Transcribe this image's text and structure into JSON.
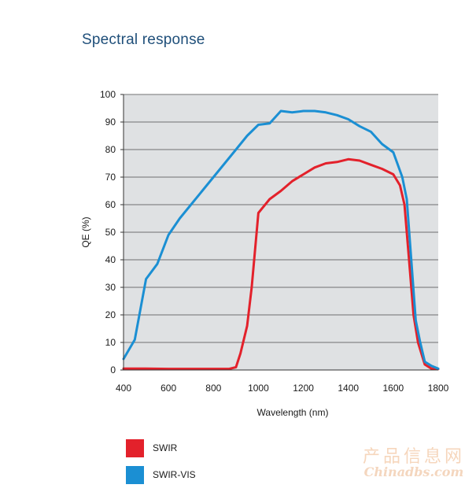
{
  "page": {
    "title": "Spectral response"
  },
  "chart_data": {
    "type": "line",
    "title": "Spectral response",
    "xlabel": "Wavelength (nm)",
    "ylabel": "QE (%)",
    "xlim": [
      400,
      1800
    ],
    "ylim": [
      0,
      100
    ],
    "x_ticks": [
      400,
      600,
      800,
      1000,
      1200,
      1400,
      1600,
      1800
    ],
    "y_ticks": [
      0,
      10,
      20,
      30,
      40,
      50,
      60,
      70,
      80,
      90,
      100
    ],
    "grid": "horizontal",
    "plot_background": "#dfe1e3",
    "legend_position": "bottom-left",
    "series": [
      {
        "name": "SWIR",
        "color": "#e3212b",
        "points": [
          [
            400,
            0.5
          ],
          [
            500,
            0.5
          ],
          [
            600,
            0.4
          ],
          [
            700,
            0.4
          ],
          [
            800,
            0.4
          ],
          [
            870,
            0.4
          ],
          [
            900,
            1
          ],
          [
            920,
            6
          ],
          [
            950,
            16
          ],
          [
            970,
            30
          ],
          [
            1000,
            57
          ],
          [
            1050,
            62
          ],
          [
            1100,
            65
          ],
          [
            1150,
            68.5
          ],
          [
            1200,
            71
          ],
          [
            1250,
            73.5
          ],
          [
            1300,
            75
          ],
          [
            1350,
            75.5
          ],
          [
            1400,
            76.5
          ],
          [
            1450,
            76
          ],
          [
            1500,
            74.5
          ],
          [
            1550,
            73
          ],
          [
            1600,
            71
          ],
          [
            1630,
            67
          ],
          [
            1650,
            60
          ],
          [
            1670,
            40
          ],
          [
            1690,
            20
          ],
          [
            1710,
            10
          ],
          [
            1740,
            2
          ],
          [
            1770,
            0.5
          ],
          [
            1800,
            0.3
          ]
        ]
      },
      {
        "name": "SWIR-VIS",
        "color": "#1b8fd3",
        "points": [
          [
            400,
            4
          ],
          [
            450,
            11
          ],
          [
            500,
            33
          ],
          [
            550,
            38.5
          ],
          [
            600,
            49
          ],
          [
            650,
            55
          ],
          [
            700,
            60
          ],
          [
            750,
            65
          ],
          [
            800,
            70
          ],
          [
            850,
            75
          ],
          [
            900,
            80
          ],
          [
            950,
            85
          ],
          [
            1000,
            89
          ],
          [
            1050,
            89.5
          ],
          [
            1100,
            94
          ],
          [
            1150,
            93.5
          ],
          [
            1200,
            94
          ],
          [
            1250,
            94
          ],
          [
            1300,
            93.5
          ],
          [
            1350,
            92.5
          ],
          [
            1400,
            91
          ],
          [
            1450,
            88.5
          ],
          [
            1500,
            86.5
          ],
          [
            1550,
            82
          ],
          [
            1600,
            79
          ],
          [
            1640,
            70
          ],
          [
            1660,
            62
          ],
          [
            1680,
            40
          ],
          [
            1700,
            18
          ],
          [
            1720,
            10
          ],
          [
            1740,
            3
          ],
          [
            1770,
            1.5
          ],
          [
            1800,
            0.5
          ]
        ]
      }
    ]
  },
  "legend": [
    {
      "label": "SWIR",
      "color": "#e3212b"
    },
    {
      "label": "SWIR-VIS",
      "color": "#1b8fd3"
    }
  ],
  "watermark": {
    "chinese": "产品信息网",
    "english": "Chinadbs.com"
  }
}
